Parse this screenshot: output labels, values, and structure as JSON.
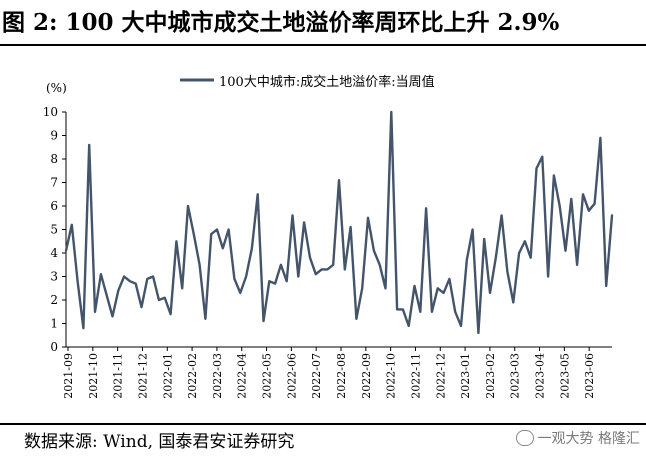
{
  "title": "图 2:  100 大中城市成交土地溢价率周环比上升 2.9%",
  "source": "数据来源:  Wind, 国泰君安证券研究",
  "watermark": "一观大势 格隆汇",
  "chart_data": {
    "type": "line",
    "ylabel": "(%)",
    "ylim": [
      0,
      10
    ],
    "yticks": [
      0,
      1,
      2,
      3,
      4,
      5,
      6,
      7,
      8,
      9,
      10
    ],
    "grid": false,
    "legend_position": "top-center",
    "x_tick_labels": [
      "2021-09",
      "2021-10",
      "2021-11",
      "2021-12",
      "2022-01",
      "2022-02",
      "2022-03",
      "2022-04",
      "2022-05",
      "2022-06",
      "2022-07",
      "2022-08",
      "2022-09",
      "2022-10",
      "2022-11",
      "2022-12",
      "2023-01",
      "2023-02",
      "2023-03",
      "2023-04",
      "2023-05",
      "2023-06"
    ],
    "series": [
      {
        "name": "100大中城市:成交土地溢价率:当周值",
        "color": "#44546A",
        "values": [
          4.1,
          5.2,
          2.8,
          0.8,
          8.6,
          1.5,
          3.1,
          2.2,
          1.3,
          2.4,
          3.0,
          2.8,
          2.7,
          1.7,
          2.9,
          3.0,
          2.0,
          2.1,
          1.4,
          4.5,
          2.5,
          6.0,
          4.8,
          3.5,
          1.2,
          4.8,
          5.0,
          4.2,
          5.0,
          2.9,
          2.3,
          3.0,
          4.2,
          6.5,
          1.1,
          2.8,
          2.7,
          3.5,
          2.8,
          5.6,
          3.0,
          5.3,
          3.8,
          3.1,
          3.3,
          3.3,
          3.5,
          7.1,
          3.3,
          5.1,
          1.2,
          2.5,
          5.5,
          4.1,
          3.5,
          2.5,
          10.0,
          1.6,
          1.6,
          0.9,
          2.6,
          1.5,
          5.9,
          1.5,
          2.5,
          2.3,
          2.9,
          1.5,
          0.9,
          3.7,
          5.0,
          0.6,
          4.6,
          2.3,
          3.8,
          5.6,
          3.2,
          1.9,
          4.0,
          4.5,
          3.8,
          7.6,
          8.1,
          3.0,
          7.3,
          6.0,
          4.1,
          6.3,
          3.5,
          6.5,
          5.8,
          6.1,
          8.9,
          2.6,
          5.6
        ]
      }
    ]
  }
}
